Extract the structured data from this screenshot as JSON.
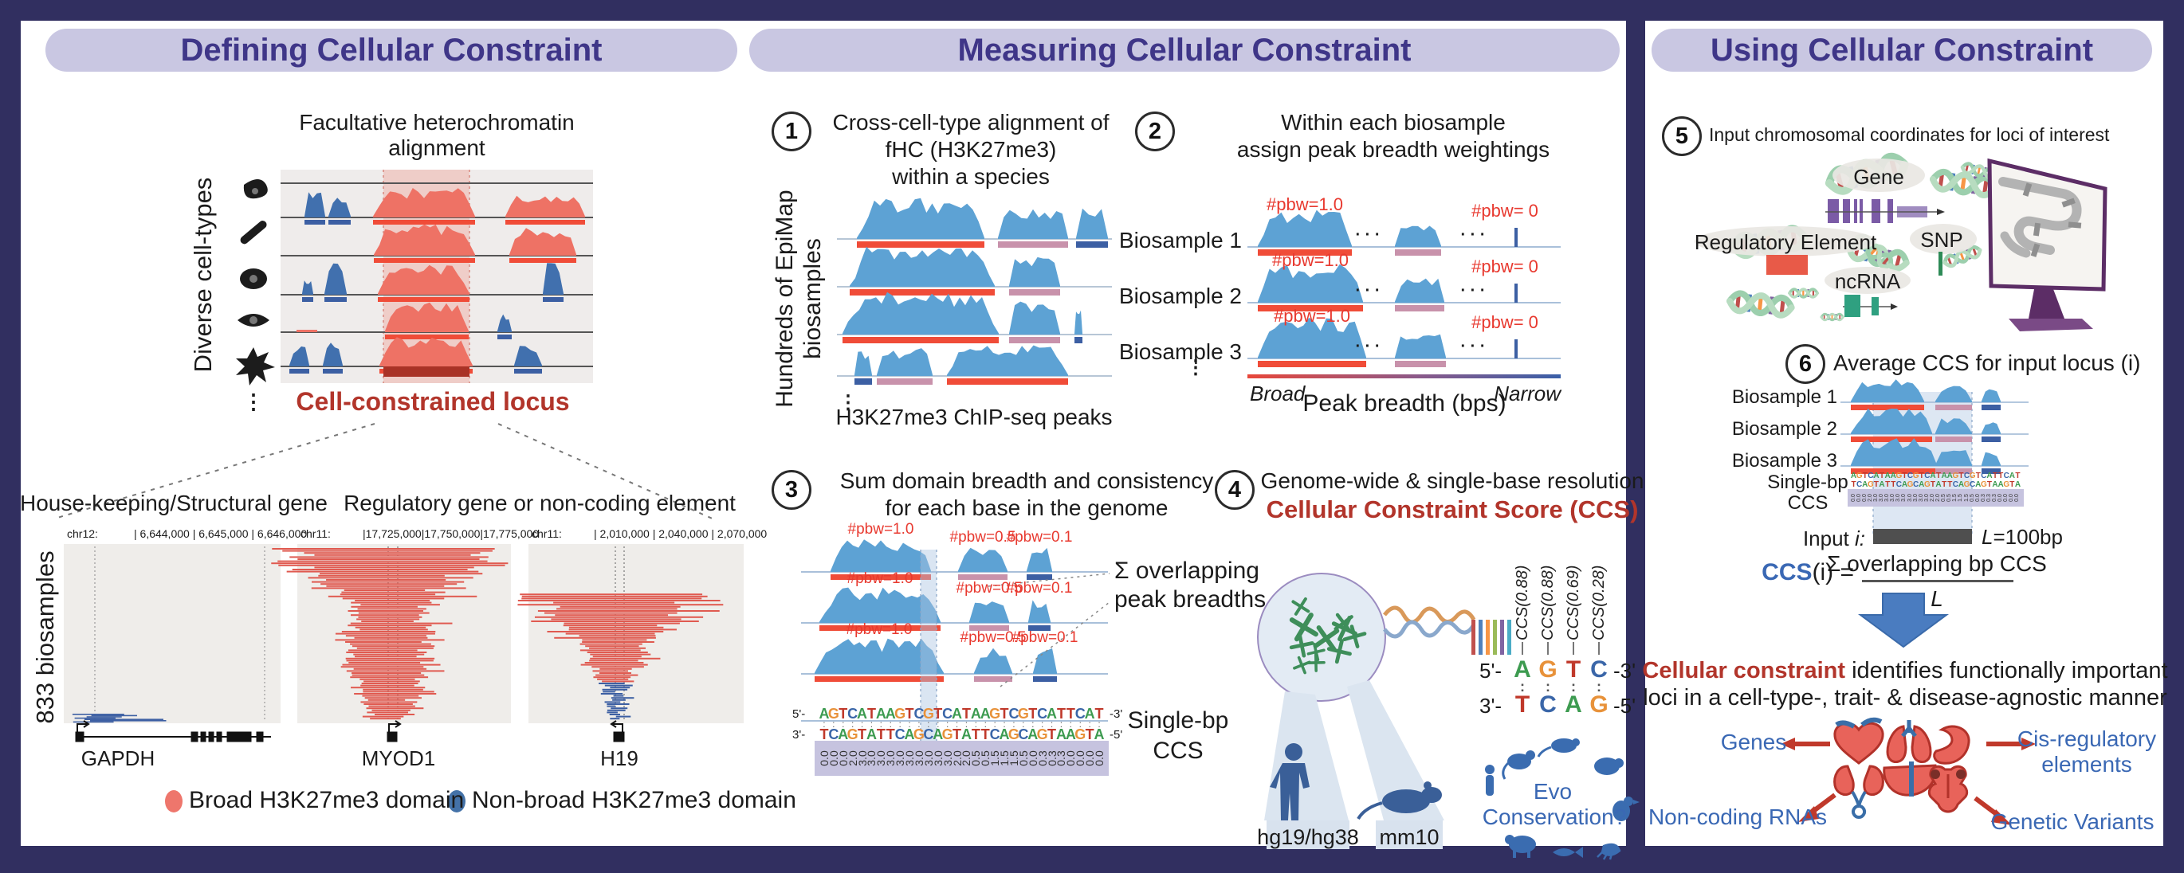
{
  "glyphs": {
    "vdots": "⋮",
    "hdots": "· · ·"
  },
  "defining": {
    "header": "Defining Cellular Constraint",
    "fhc_title_1": "Facultative heterochromatin",
    "fhc_title_2": "alignment",
    "cell_types_label": "Diverse cell-types",
    "locus_label": "Cell-constrained locus",
    "housekeeping_title": "House-keeping/Structural gene",
    "regulatory_title": "Regulatory gene or non-coding element",
    "biosamples_label": "833 biosamples",
    "browsers": [
      {
        "chrom": "chr12:",
        "coords": "| 6,644,000 | 6,645,000 | 6,646,000",
        "gene": "GAPDH"
      },
      {
        "chrom": "chr11:",
        "coords": "|17,725,000|17,750,000|17,775,000",
        "gene": "MYOD1"
      },
      {
        "chrom": "chr11:",
        "coords": "| 2,010,000   | 2,040,000   | 2,070,000",
        "gene": "H19"
      }
    ],
    "legend": [
      {
        "label": "Broad H3K27me3 domain",
        "color": "#ee766c"
      },
      {
        "label": "Non-broad H3K27me3 domain",
        "color": "#4472a8"
      }
    ]
  },
  "measuring": {
    "header": "Measuring Cellular Constraint",
    "step1": {
      "num": "1",
      "title_1": "Cross-cell-type alignment of",
      "title_2": "fHC (H3K27me3)",
      "title_3": "within a species",
      "side_1": "Hundreds of EpiMap",
      "side_2": "biosamples",
      "caption": "H3K27me3 ChIP-seq peaks"
    },
    "step2": {
      "num": "2",
      "title_1": "Within each biosample",
      "title_2": "assign peak breadth weightings",
      "biosamples": [
        "Biosample 1",
        "Biosample 2",
        "Biosample 3"
      ],
      "pbw_high": "#pbw=1.0",
      "pbw_zero": "#pbw= 0",
      "axis_left": "Broad",
      "axis_right": "Narrow",
      "axis_title": "Peak breadth (bps)"
    },
    "step3": {
      "num": "3",
      "title_1": "Sum domain breadth and consistency",
      "title_2": "for each base in the genome",
      "pbw_1": "#pbw=1.0",
      "pbw_05": "#pbw=0.5",
      "pbw_01": "#pbw=0.1",
      "sum_1": "Σ overlapping",
      "sum_2": "peak breadths",
      "seq_top": "AGTCATAAGTCGTCATAAGTCGTCATTCAT",
      "seq_bottom": "TCAGTATTCAGCAGTATTCAGCAGTAAGTA",
      "ccs_values": [
        "0.0",
        "0.0",
        "0.0",
        "2.0",
        "3.0",
        "3.0",
        "3.0",
        "3.0",
        "3.0",
        "3.0",
        "3.0",
        "3.0",
        "3.0",
        "3.0",
        "2.0",
        "2.0",
        "0.5",
        "0.5",
        "1.5",
        "1.5",
        "1.5",
        "0.5",
        "0.0",
        "0.3",
        "0.3",
        "0.3",
        "0.0",
        "0.0",
        "0.0",
        "0.0"
      ],
      "p5": "5'-",
      "p3": "-3'",
      "p3b": "3'-",
      "p5b": "-5'",
      "single_1": "Single-bp",
      "single_2": "CCS"
    },
    "step4": {
      "num": "4",
      "title_black": "Genome-wide & single-base resolution",
      "title_red": "Cellular Constraint Score (CCS)",
      "ccs_labels": [
        "CCS(0.88)",
        "CCS(0.88)",
        "CCS(0.69)",
        "CCS(0.28)"
      ],
      "bases_top": [
        "A",
        "G",
        "T",
        "C"
      ],
      "bases_bottom": [
        "T",
        "C",
        "A",
        "G"
      ],
      "p5": "5'-",
      "p3": "-3'",
      "p3b": "3'-",
      "p5b": "-5'",
      "genome_human": "hg19/hg38",
      "genome_mouse": "mm10",
      "evo_1": "Evo",
      "evo_2": "Conservation?"
    }
  },
  "using": {
    "header": "Using Cellular Constraint",
    "step5": {
      "num": "5",
      "title": "Input chromosomal coordinates for loci of interest",
      "gene_label": "Gene",
      "regulatory_label": "Regulatory Element",
      "snp_label": "SNP",
      "ncrna_label": "ncRNA"
    },
    "step6": {
      "num": "6",
      "title": "Average CCS for input locus (i)",
      "biosamples": [
        "Biosample 1",
        "Biosample 2",
        "Biosample 3"
      ],
      "single_1": "Single-bp",
      "single_2": "CCS",
      "input_1": "Input ",
      "input_2": "i:",
      "len_1": "L",
      "len_2": "=100bp",
      "f_ccs": "CCS",
      "f_args": "(i) =",
      "f_num": "Σ overlapping bp CCS",
      "f_den": "L"
    },
    "conclusion": {
      "red": "Cellular constraint",
      "rest_1": " identifies functionally important",
      "line_2": "loci in a cell-type-, trait- & disease-agnostic manner",
      "genes": "Genes",
      "cis_1": "Cis-regulatory",
      "cis_2": "elements",
      "ncrnas": "Non-coding RNAs",
      "variants": "Genetic Variants"
    }
  }
}
